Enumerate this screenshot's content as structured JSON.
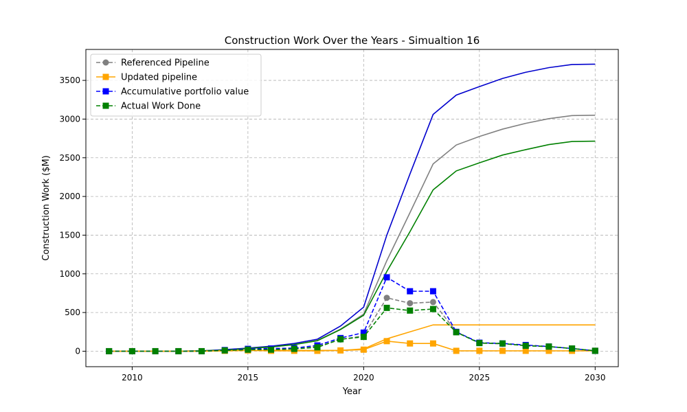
{
  "chart_data": {
    "type": "line",
    "title": "Construction Work Over the Years - Simualtion 16",
    "xlabel": "Year",
    "ylabel": "Construction Work ($M)",
    "xlim": [
      2008.0,
      2031.0
    ],
    "ylim": [
      -200,
      3900
    ],
    "xticks": [
      2010,
      2015,
      2020,
      2025,
      2030
    ],
    "yticks": [
      0,
      500,
      1000,
      1500,
      2000,
      2500,
      3000,
      3500
    ],
    "grid": true,
    "legend_position": "top-left",
    "x": [
      2009,
      2010,
      2011,
      2012,
      2013,
      2014,
      2015,
      2016,
      2017,
      2018,
      2019,
      2020,
      2021,
      2022,
      2023,
      2024,
      2025,
      2026,
      2027,
      2028,
      2029,
      2030
    ],
    "legend_series": [
      {
        "name": "Referenced Pipeline",
        "color": "#808080",
        "linestyle": "dashed",
        "marker": "circle",
        "values": [
          0,
          0,
          0,
          0,
          0,
          10,
          20,
          20,
          30,
          60,
          150,
          200,
          690,
          620,
          635,
          250,
          105,
          95,
          75,
          60,
          35,
          5
        ]
      },
      {
        "name": "Updated pipeline",
        "color": "#ffa500",
        "linestyle": "solid",
        "marker": "square",
        "values": [
          0,
          0,
          0,
          0,
          0,
          5,
          10,
          5,
          5,
          5,
          10,
          20,
          130,
          100,
          100,
          5,
          5,
          5,
          5,
          5,
          5,
          5
        ]
      },
      {
        "name": "Accumulative portfolio value",
        "color": "#0000ff",
        "linestyle": "dashed",
        "marker": "square",
        "values": [
          0,
          0,
          0,
          0,
          0,
          15,
          30,
          35,
          40,
          75,
          170,
          240,
          955,
          775,
          775,
          250,
          110,
          100,
          80,
          60,
          35,
          5
        ]
      },
      {
        "name": "Actual Work Done",
        "color": "#008000",
        "linestyle": "dashed",
        "marker": "square",
        "values": [
          0,
          0,
          0,
          0,
          0,
          10,
          20,
          20,
          30,
          50,
          155,
          185,
          560,
          525,
          545,
          245,
          105,
          100,
          70,
          60,
          35,
          5
        ]
      }
    ],
    "cumulative_series": [
      {
        "color": "#0000cd",
        "values": [
          0,
          0,
          0,
          0,
          5,
          20,
          40,
          65,
          100,
          155,
          325,
          570,
          1500,
          2290,
          3060,
          3310,
          3420,
          3525,
          3605,
          3665,
          3705,
          3710
        ]
      },
      {
        "color": "#808080",
        "values": [
          0,
          0,
          0,
          0,
          5,
          15,
          35,
          55,
          85,
          140,
          285,
          480,
          1170,
          1790,
          2420,
          2665,
          2775,
          2870,
          2945,
          3005,
          3045,
          3050
        ]
      },
      {
        "color": "#008000",
        "values": [
          0,
          0,
          0,
          0,
          5,
          15,
          35,
          55,
          85,
          135,
          280,
          465,
          1030,
          1545,
          2085,
          2330,
          2435,
          2535,
          2605,
          2670,
          2710,
          2715
        ]
      },
      {
        "color": "#ffa500",
        "values": [
          0,
          0,
          0,
          0,
          0,
          5,
          10,
          10,
          10,
          10,
          10,
          30,
          160,
          250,
          340,
          340,
          340,
          340,
          340,
          340,
          340,
          340
        ]
      }
    ]
  }
}
